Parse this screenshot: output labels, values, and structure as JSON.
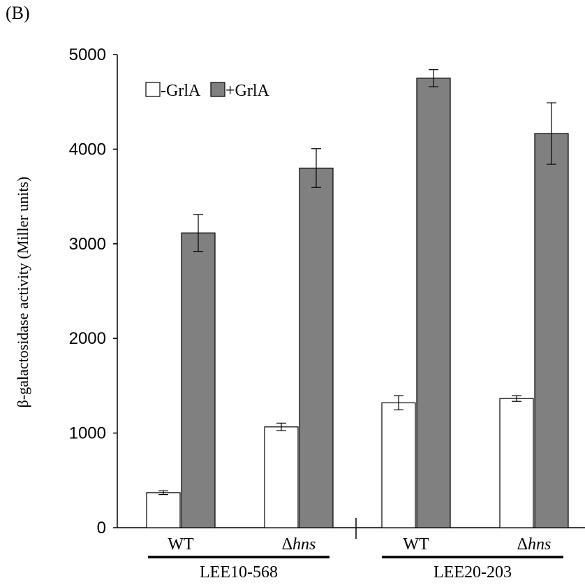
{
  "panel_label": "(B)",
  "colors": {
    "minus": "#ffffff",
    "plus": "#808080",
    "stroke": "#000000"
  },
  "chart_data": {
    "type": "bar",
    "title": "",
    "xlabel": "",
    "ylabel": "β-galactosidase activity (Miller units)",
    "ylim": [
      0,
      5000
    ],
    "yticks": [
      0,
      1000,
      2000,
      3000,
      4000,
      5000
    ],
    "grid": false,
    "legend_position": "top-left",
    "categories": [
      "WT",
      "Δhns",
      "WT",
      "Δhns"
    ],
    "category_parts": [
      {
        "prefix": "",
        "italic": "",
        "plain": "WT"
      },
      {
        "prefix": "Δ",
        "italic": "hns",
        "plain": ""
      },
      {
        "prefix": "",
        "italic": "",
        "plain": "WT"
      },
      {
        "prefix": "Δ",
        "italic": "hns",
        "plain": ""
      }
    ],
    "groups": [
      {
        "label": "LEE10-568",
        "categories": [
          0,
          1
        ]
      },
      {
        "label": "LEE20-203",
        "categories": [
          2,
          3
        ]
      }
    ],
    "series": [
      {
        "name": "-GrlA",
        "values": [
          370,
          1065,
          1320,
          1365
        ],
        "errors": [
          20,
          40,
          75,
          30
        ]
      },
      {
        "name": "+GrlA",
        "values": [
          3115,
          3800,
          4750,
          4165
        ],
        "errors": [
          195,
          205,
          90,
          325
        ]
      }
    ]
  }
}
